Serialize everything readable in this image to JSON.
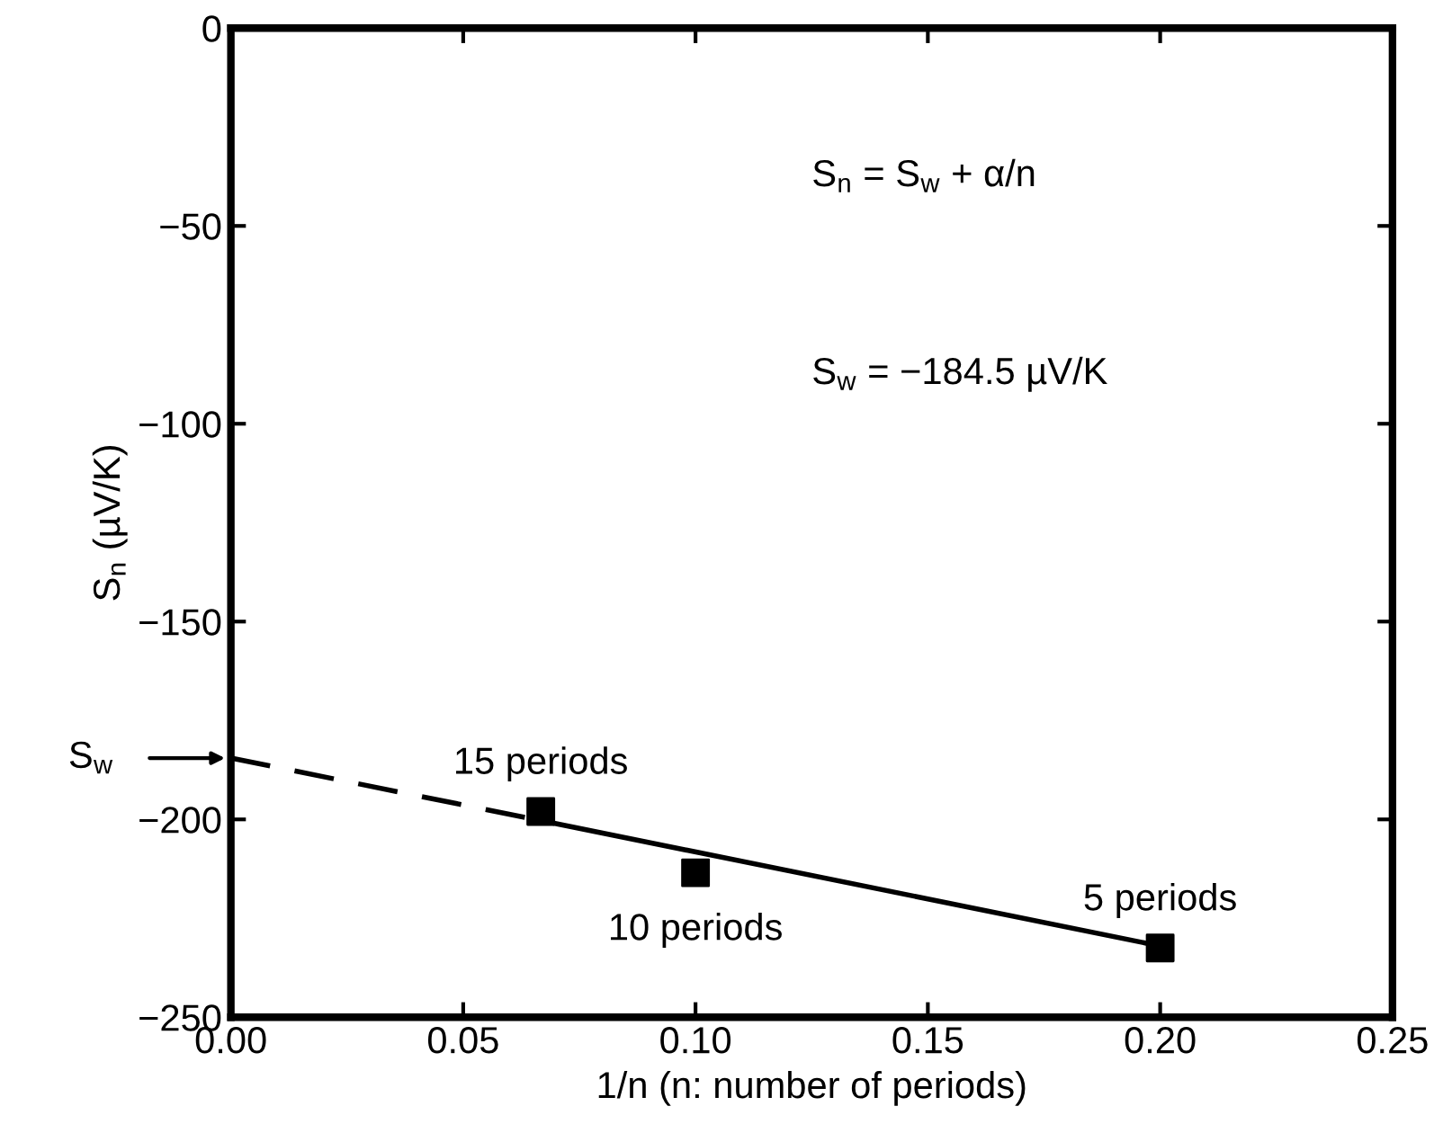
{
  "chart_data": {
    "type": "scatter",
    "xlabel": "1/n (n: number of periods)",
    "ylabel": "S$_{n}$ (µV/K)",
    "xlim": [
      0,
      0.25
    ],
    "ylim": [
      -250,
      0
    ],
    "xticks": [
      {
        "value": 0,
        "label": "0.00"
      },
      {
        "value": 0.05,
        "label": "0.05"
      },
      {
        "value": 0.1,
        "label": "0.10"
      },
      {
        "value": 0.15,
        "label": "0.15"
      },
      {
        "value": 0.2,
        "label": "0.20"
      },
      {
        "value": 0.25,
        "label": "0.25"
      }
    ],
    "yticks": [
      0,
      {
        "value": -50,
        "label": "−50"
      },
      {
        "value": -100,
        "label": "−100"
      },
      {
        "value": -150,
        "label": "−150"
      },
      {
        "value": -200,
        "label": "−200"
      },
      {
        "value": -250,
        "label": "−250"
      }
    ],
    "grid": false,
    "legend": false,
    "series": [
      {
        "type": "line",
        "color": "#000000",
        "line_style": "dashed",
        "marker": "none",
        "x": [
          0,
          0.0667
        ],
        "values": [
          -184.5,
          -200.3
        ]
      },
      {
        "type": "line",
        "color": "#000000",
        "line_style": "solid",
        "marker": "none",
        "x": [
          0.0667,
          0.2
        ],
        "values": [
          -200.3,
          -232
        ]
      },
      {
        "color": "#000000",
        "marker": "square",
        "x": [
          0.0667,
          0.1,
          0.2
        ],
        "values": [
          -198,
          -213.5,
          -232.5
        ]
      }
    ],
    "annotations": [
      {
        "text": "15 periods",
        "x": 0.0667,
        "y": -198
      },
      {
        "text": "10 periods",
        "x": 0.1,
        "y": -213.5
      },
      {
        "text": "5 periods",
        "x": 0.2,
        "y": -232.5
      },
      "S$_{w}$",
      "S$_{n}$ = S$_{w}$ + α/n",
      "S$_{w}$ = −184.5 µV/K"
    ]
  }
}
